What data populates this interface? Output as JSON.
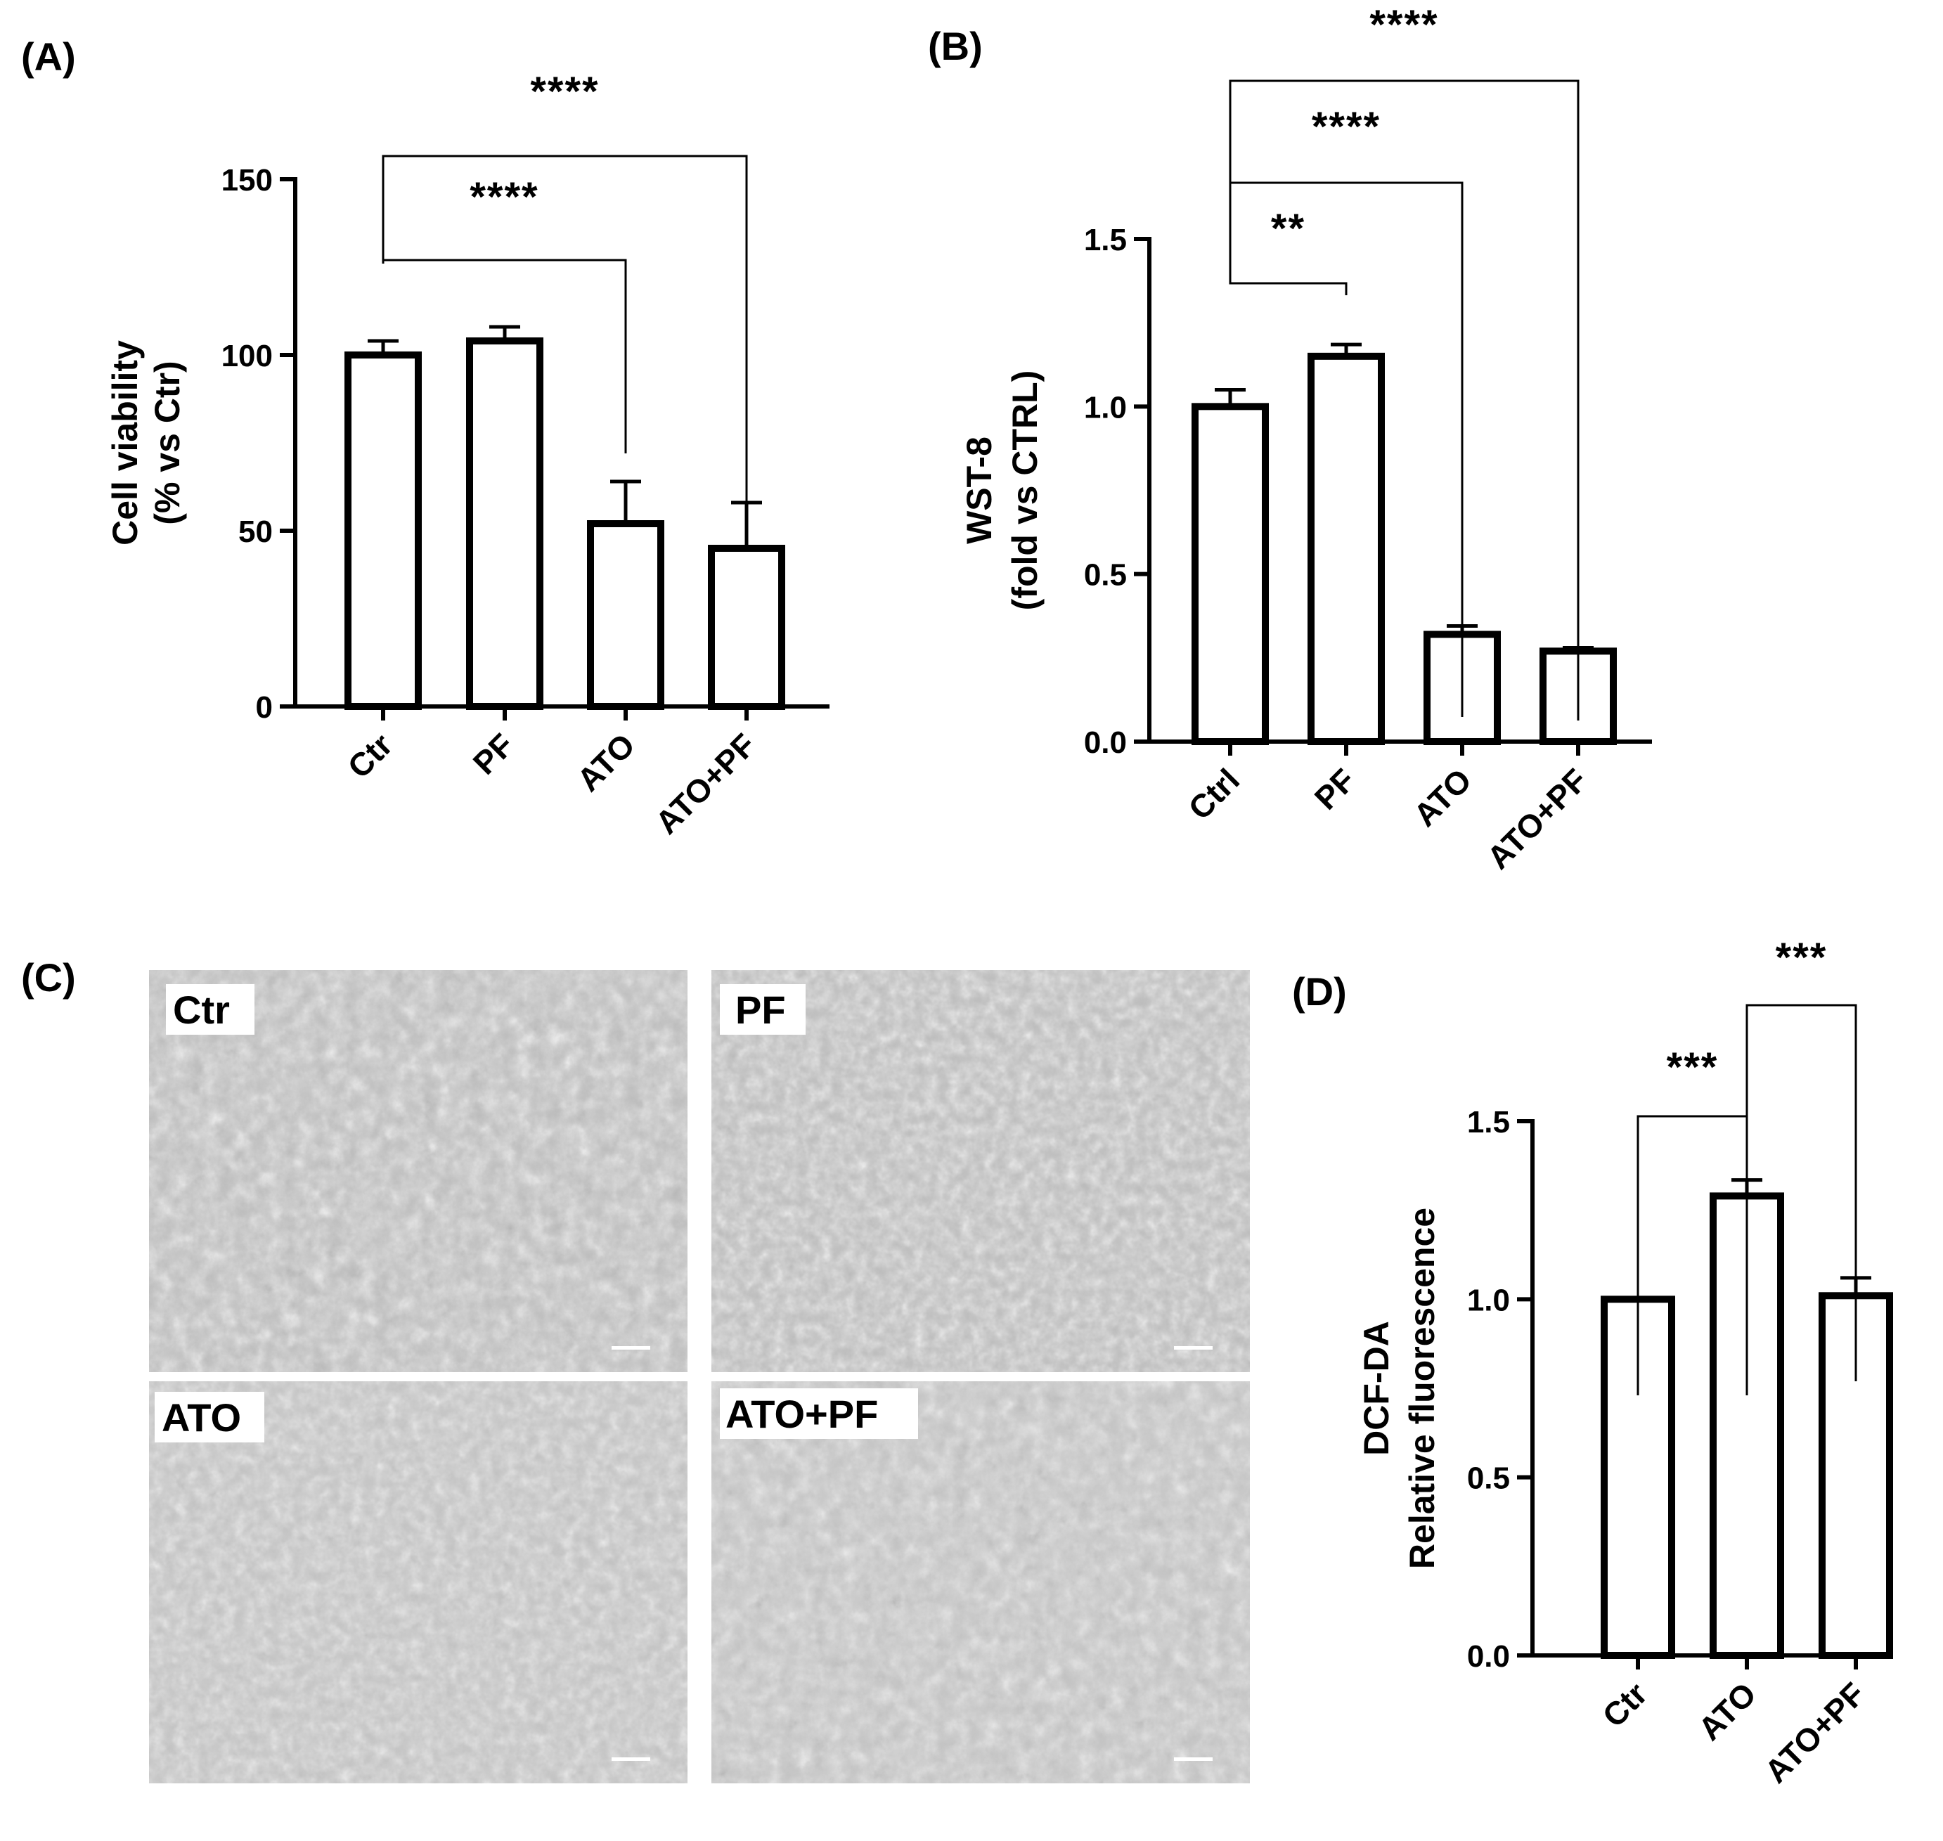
{
  "panels": {
    "A": "(A)",
    "B": "(B)",
    "C": "(C)",
    "D": "(D)"
  },
  "chart_data": [
    {
      "panel": "A",
      "type": "bar",
      "categories": [
        "Ctr",
        "PF",
        "ATO",
        "ATO+PF"
      ],
      "values": [
        100,
        104,
        52,
        45
      ],
      "errors": [
        4,
        4,
        12,
        13
      ],
      "ylabel_lines": [
        "Cell viability",
        "(% vs Ctr)"
      ],
      "ylim": [
        0,
        150
      ],
      "yticks": [
        0,
        50,
        100,
        150
      ],
      "ytick_labels": [
        "0",
        "50",
        "100",
        "150"
      ],
      "significance": [
        {
          "from": 0,
          "to": 2,
          "label": "****"
        },
        {
          "from": 0,
          "to": 3,
          "label": "****"
        }
      ]
    },
    {
      "panel": "B",
      "type": "bar",
      "categories": [
        "Ctrl",
        "PF",
        "ATO",
        "ATO+PF"
      ],
      "values": [
        1.0,
        1.15,
        0.32,
        0.27
      ],
      "errors": [
        0.05,
        0.035,
        0.025,
        0.01
      ],
      "ylabel_lines": [
        "WST-8",
        "(fold vs CTRL)"
      ],
      "ylim": [
        0,
        1.5
      ],
      "yticks": [
        0,
        0.5,
        1.0,
        1.5
      ],
      "ytick_labels": [
        "0.0",
        "0.5",
        "1.0",
        "1.5"
      ],
      "significance": [
        {
          "from": 0,
          "to": 1,
          "label": "**"
        },
        {
          "from": 0,
          "to": 2,
          "label": "****"
        },
        {
          "from": 0,
          "to": 3,
          "label": "****"
        }
      ]
    },
    {
      "panel": "D",
      "type": "bar",
      "categories": [
        "Ctr",
        "ATO",
        "ATO+PF"
      ],
      "values": [
        1.0,
        1.29,
        1.01
      ],
      "errors": [
        0,
        0.045,
        0.05
      ],
      "ylabel_lines": [
        "DCF-DA",
        "Relative fluorescence"
      ],
      "ylim": [
        0,
        1.5
      ],
      "yticks": [
        0,
        0.5,
        1.0,
        1.5
      ],
      "ytick_labels": [
        "0.0",
        "0.5",
        "1.0",
        "1.5"
      ],
      "significance": [
        {
          "from": 0,
          "to": 1,
          "label": "***"
        },
        {
          "from": 1,
          "to": 2,
          "label": "***"
        }
      ]
    }
  ],
  "micrographs": [
    {
      "label": "Ctr"
    },
    {
      "label": "PF"
    },
    {
      "label": "ATO"
    },
    {
      "label": "ATO+PF"
    }
  ],
  "colors": {
    "ink": "#000000",
    "bar_fill": "#ffffff",
    "micrograph_base": "#bdbdbd"
  }
}
